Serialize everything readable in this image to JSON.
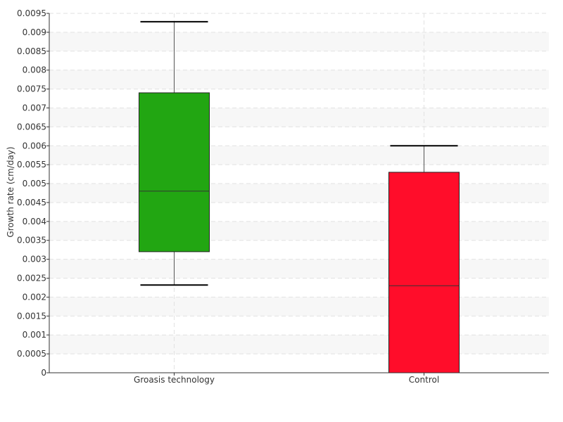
{
  "chart_data": {
    "type": "boxplot",
    "ylabel": "Growth rate (cm/day)",
    "xlabel": "",
    "ylim": [
      0,
      0.0095
    ],
    "ytick_step": 0.0005,
    "ytick_labels": [
      "0",
      "0.0005",
      "0.001",
      "0.0015",
      "0.002",
      "0.0025",
      "0.003",
      "0.0035",
      "0.004",
      "0.0045",
      "0.005",
      "0.0055",
      "0.006",
      "0.0065",
      "0.007",
      "0.0075",
      "0.008",
      "0.0085",
      "0.009",
      "0.0095"
    ],
    "grid": true,
    "categories": [
      "Groasis technology",
      "Control"
    ],
    "boxes": [
      {
        "category": "Groasis technology",
        "min": 0.00232,
        "q1": 0.0032,
        "median": 0.0048,
        "q3": 0.0074,
        "max": 0.00928,
        "color": "#22a612"
      },
      {
        "category": "Control",
        "min": 0.0,
        "q1": 0.0,
        "median": 0.0023,
        "q3": 0.0053,
        "max": 0.006,
        "color": "#ff0d2a"
      }
    ]
  }
}
